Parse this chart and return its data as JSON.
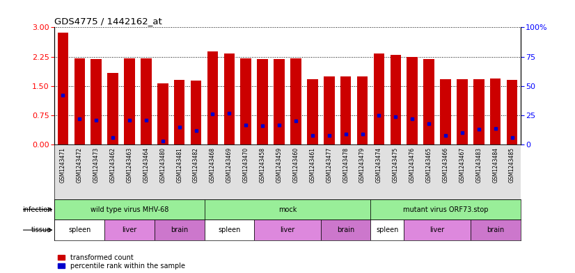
{
  "title": "GDS4775 / 1442162_at",
  "samples": [
    "GSM1243471",
    "GSM1243472",
    "GSM1243473",
    "GSM1243462",
    "GSM1243463",
    "GSM1243464",
    "GSM1243480",
    "GSM1243481",
    "GSM1243482",
    "GSM1243468",
    "GSM1243469",
    "GSM1243470",
    "GSM1243458",
    "GSM1243459",
    "GSM1243460",
    "GSM1243461",
    "GSM1243477",
    "GSM1243478",
    "GSM1243479",
    "GSM1243474",
    "GSM1243475",
    "GSM1243476",
    "GSM1243465",
    "GSM1243466",
    "GSM1243467",
    "GSM1243483",
    "GSM1243484",
    "GSM1243485"
  ],
  "transformed_count": [
    2.87,
    2.2,
    2.18,
    1.83,
    2.2,
    2.2,
    1.57,
    1.65,
    1.63,
    2.38,
    2.33,
    2.2,
    2.18,
    2.18,
    2.2,
    1.68,
    1.75,
    1.75,
    1.75,
    2.33,
    2.3,
    2.25,
    2.18,
    1.68,
    1.68,
    1.68,
    1.7,
    1.65
  ],
  "percentile_rank": [
    42,
    22,
    21,
    6,
    21,
    21,
    3,
    15,
    12,
    26,
    27,
    17,
    16,
    17,
    20,
    8,
    8,
    9,
    9,
    25,
    24,
    22,
    18,
    8,
    10,
    13,
    14,
    6
  ],
  "bar_color": "#cc0000",
  "marker_color": "#0000cc",
  "left_ylim": [
    0,
    3
  ],
  "right_ylim": [
    0,
    100
  ],
  "left_yticks": [
    0,
    0.75,
    1.5,
    2.25,
    3
  ],
  "right_yticks": [
    0,
    25,
    50,
    75,
    100
  ],
  "infection_groups": [
    {
      "label": "wild type virus MHV-68",
      "start": 0,
      "end": 9
    },
    {
      "label": "mock",
      "start": 9,
      "end": 19
    },
    {
      "label": "mutant virus ORF73.stop",
      "start": 19,
      "end": 28
    }
  ],
  "infection_color": "#99ee99",
  "tissue_groups": [
    {
      "label": "spleen",
      "start": 0,
      "end": 3
    },
    {
      "label": "liver",
      "start": 3,
      "end": 6
    },
    {
      "label": "brain",
      "start": 6,
      "end": 9
    },
    {
      "label": "spleen",
      "start": 9,
      "end": 12
    },
    {
      "label": "liver",
      "start": 12,
      "end": 16
    },
    {
      "label": "brain",
      "start": 16,
      "end": 19
    },
    {
      "label": "spleen",
      "start": 19,
      "end": 21
    },
    {
      "label": "liver",
      "start": 21,
      "end": 25
    },
    {
      "label": "brain",
      "start": 25,
      "end": 28
    }
  ],
  "tissue_colors": {
    "spleen": "#ffffff",
    "liver": "#dd88dd",
    "brain": "#cc77cc"
  },
  "infection_row_label": "infection",
  "tissue_row_label": "tissue",
  "legend_label_red": "transformed count",
  "legend_label_blue": "percentile rank within the sample",
  "right_tick_labels": [
    "0",
    "25",
    "50",
    "75",
    "100%"
  ]
}
